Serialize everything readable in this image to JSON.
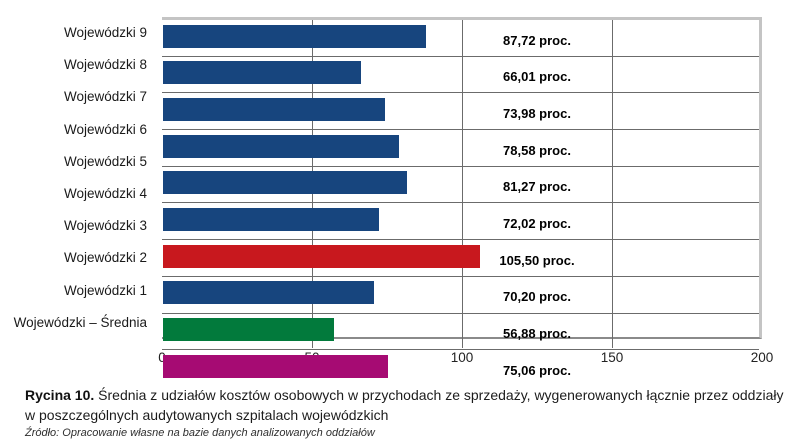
{
  "figure": {
    "caption_label": "Rycina 10.",
    "caption_text": "Średnia z udziałów kosztów osobowych w przychodach ze sprzedaży, wygenerowanych łącznie przez oddziały w poszczególnych audytowanych szpitalach wojewódzkich",
    "source": "Źródło: Opracowanie własne na bazie danych analizowanych oddziałów"
  },
  "chart_data": {
    "type": "bar",
    "orientation": "horizontal",
    "title": "",
    "xlabel": "",
    "ylabel": "",
    "xlim": [
      0,
      200
    ],
    "x_ticks": [
      0,
      50,
      100,
      150,
      200
    ],
    "x_tick_labels": [
      "0",
      "50",
      "100",
      "150",
      "200"
    ],
    "grid": true,
    "value_column_range": [
      100,
      150
    ],
    "categories": [
      "Wojewódzki 9",
      "Wojewódzki 8",
      "Wojewódzki 7",
      "Wojewódzki 6",
      "Wojewódzki 5",
      "Wojewódzki 4",
      "Wojewódzki 3",
      "Wojewódzki 2",
      "Wojewódzki 1",
      "Wojewódzki – Średnia"
    ],
    "values": [
      87.72,
      66.01,
      73.98,
      78.58,
      81.27,
      72.02,
      105.5,
      70.2,
      56.88,
      75.06
    ],
    "value_labels": [
      "87,72 proc.",
      "66,01 proc.",
      "73,98 proc.",
      "78,58 proc.",
      "81,27 proc.",
      "72,02 proc.",
      "105,50 proc.",
      "70,20 proc.",
      "56,88 proc.",
      "75,06 proc."
    ],
    "bar_colors": [
      "#17457E",
      "#17457E",
      "#17457E",
      "#17457E",
      "#17457E",
      "#17457E",
      "#C8181E",
      "#17457E",
      "#027A3C",
      "#A60B73"
    ],
    "accent_colors": {
      "navy": "#17457E",
      "red": "#C8181E",
      "green": "#027A3C",
      "magenta": "#A60B73"
    }
  }
}
